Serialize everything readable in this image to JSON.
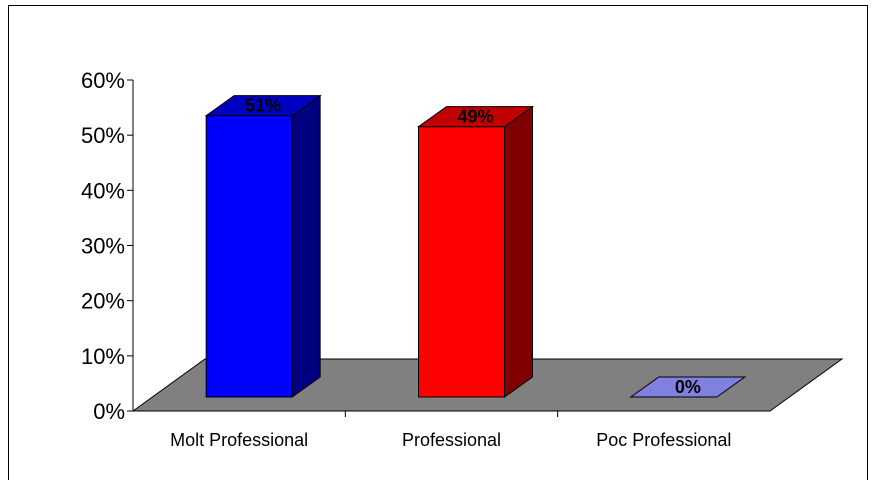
{
  "chart_data": {
    "type": "bar",
    "categories": [
      "Molt Professional",
      "Professional",
      "Poc Professional"
    ],
    "values": [
      51,
      49,
      0
    ],
    "data_labels": [
      "51%",
      "49%",
      "0%"
    ],
    "y_ticks": [
      "0%",
      "10%",
      "20%",
      "30%",
      "40%",
      "50%",
      "60%"
    ],
    "ylim": [
      0,
      60
    ],
    "grid": false,
    "legend": "none",
    "colors": {
      "bar_fronts": [
        "#0000ff",
        "#ff0000",
        "#6666cc"
      ],
      "bar_sides": [
        "#000080",
        "#800000",
        "#4d4d99"
      ],
      "bar_tops": [
        "#0000c0",
        "#c00000",
        "#8080e0"
      ],
      "floor": "#808080"
    }
  }
}
